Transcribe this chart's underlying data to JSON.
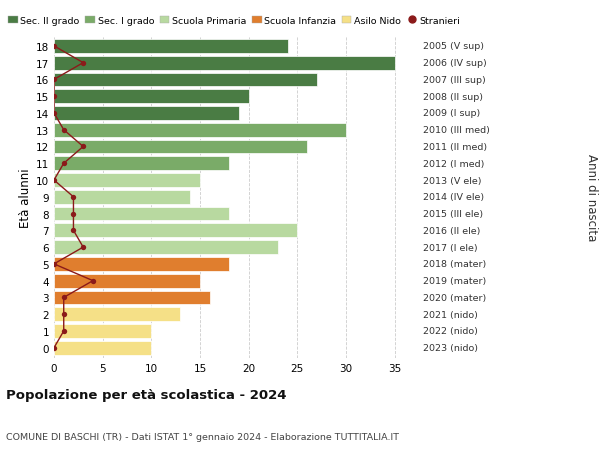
{
  "ages": [
    18,
    17,
    16,
    15,
    14,
    13,
    12,
    11,
    10,
    9,
    8,
    7,
    6,
    5,
    4,
    3,
    2,
    1,
    0
  ],
  "labels_right": [
    "2005 (V sup)",
    "2006 (IV sup)",
    "2007 (III sup)",
    "2008 (II sup)",
    "2009 (I sup)",
    "2010 (III med)",
    "2011 (II med)",
    "2012 (I med)",
    "2013 (V ele)",
    "2014 (IV ele)",
    "2015 (III ele)",
    "2016 (II ele)",
    "2017 (I ele)",
    "2018 (mater)",
    "2019 (mater)",
    "2020 (mater)",
    "2021 (nido)",
    "2022 (nido)",
    "2023 (nido)"
  ],
  "bar_values": [
    24,
    35,
    27,
    20,
    19,
    30,
    26,
    18,
    15,
    14,
    18,
    25,
    23,
    18,
    15,
    16,
    13,
    10,
    10
  ],
  "bar_colors": [
    "#4a7c44",
    "#4a7c44",
    "#4a7c44",
    "#4a7c44",
    "#4a7c44",
    "#7aab68",
    "#7aab68",
    "#7aab68",
    "#b8d9a0",
    "#b8d9a0",
    "#b8d9a0",
    "#b8d9a0",
    "#b8d9a0",
    "#e07e2e",
    "#e07e2e",
    "#e07e2e",
    "#f5e087",
    "#f5e087",
    "#f5e087"
  ],
  "stranieri_values": [
    0,
    3,
    0,
    0,
    0,
    1,
    3,
    1,
    0,
    2,
    2,
    2,
    3,
    0,
    4,
    1,
    1,
    1,
    0
  ],
  "stranieri_color": "#8b1a1a",
  "legend_items": [
    {
      "label": "Sec. II grado",
      "color": "#4a7c44"
    },
    {
      "label": "Sec. I grado",
      "color": "#7aab68"
    },
    {
      "label": "Scuola Primaria",
      "color": "#b8d9a0"
    },
    {
      "label": "Scuola Infanzia",
      "color": "#e07e2e"
    },
    {
      "label": "Asilo Nido",
      "color": "#f5e087"
    },
    {
      "label": "Stranieri",
      "color": "#8b1a1a"
    }
  ],
  "ylabel_left": "Età alunni",
  "ylabel_right": "Anni di nascita",
  "title": "Popolazione per età scolastica - 2024",
  "subtitle": "COMUNE DI BASCHI (TR) - Dati ISTAT 1° gennaio 2024 - Elaborazione TUTTITALIA.IT",
  "xlim": [
    0,
    37
  ],
  "xticks": [
    0,
    5,
    10,
    15,
    20,
    25,
    30,
    35
  ],
  "bar_height": 0.82,
  "background_color": "#ffffff",
  "grid_color": "#cccccc"
}
